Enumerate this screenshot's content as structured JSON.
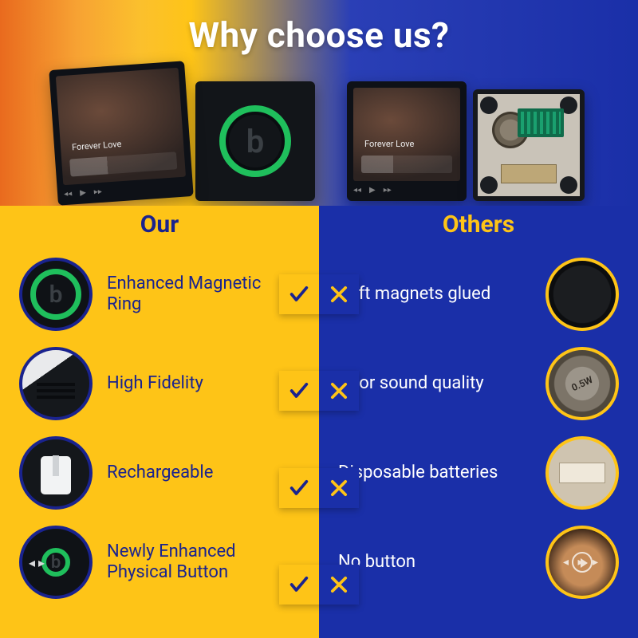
{
  "title": "Why choose us?",
  "hero": {
    "song_caption": "Forever Love"
  },
  "our": {
    "heading": "Our",
    "rows": [
      {
        "label": "Enhanced Magnetic Ring",
        "thumb": "th-ring"
      },
      {
        "label": "High Fidelity",
        "thumb": "th-hf"
      },
      {
        "label": "Rechargeable",
        "thumb": "th-rc"
      },
      {
        "label": "Newly Enhanced Physical Button",
        "thumb": "th-btn"
      }
    ]
  },
  "others": {
    "heading": "Others",
    "rows": [
      {
        "label": "Soft magnets glued",
        "thumb": "th-soft"
      },
      {
        "label": "Poor sound quality",
        "thumb": "th-spk"
      },
      {
        "label": "Disposable batteries",
        "thumb": "th-bat"
      },
      {
        "label": "No button",
        "thumb": "th-nob"
      }
    ]
  },
  "marks": {
    "check": "✓",
    "cross": "✕"
  },
  "colors": {
    "our_bg": "#fec417",
    "our_text": "#1a238e",
    "oth_bg": "#1a2fa8",
    "oth_text": "#ffffff",
    "oth_heading": "#fec417",
    "ring_green": "#1fbf5c"
  },
  "typography": {
    "title_size": 44,
    "heading_size": 30,
    "label_size": 22
  }
}
